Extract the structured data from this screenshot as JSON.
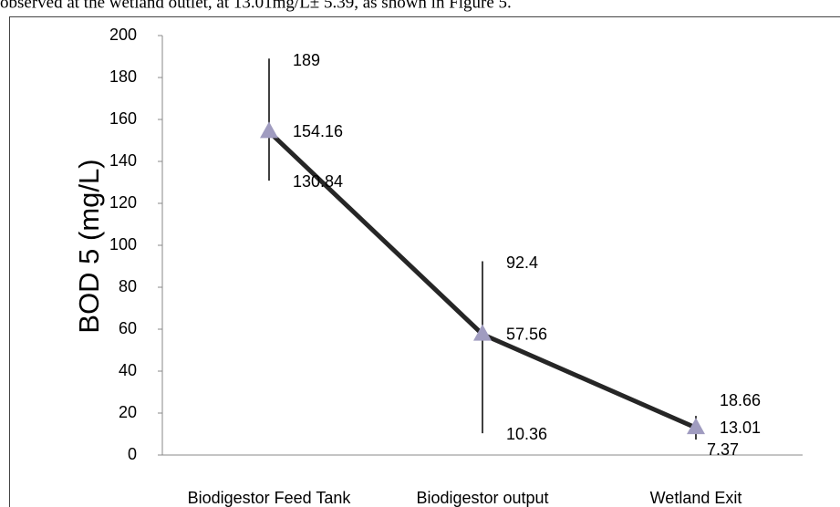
{
  "context_text": "observed at the wetland outlet, at 13.01mg/L± 5.39, as shown in Figure 5.",
  "chart_data": {
    "type": "line",
    "ylabel": "BOD 5 (mg/L)",
    "categories": [
      "Biodigestor Feed Tank",
      "Biodigestor output",
      "Wetland Exit"
    ],
    "series": [
      {
        "color": "#262626",
        "marker_color": "#a09cc0",
        "values": [
          154.16,
          57.56,
          13.01
        ],
        "high": [
          189,
          92.4,
          18.66
        ],
        "low": [
          130.84,
          10.36,
          7.37
        ]
      }
    ],
    "ylim": [
      0,
      200
    ],
    "yticks": [
      0,
      20,
      40,
      60,
      80,
      100,
      120,
      140,
      160,
      180,
      200
    ],
    "grid": false
  }
}
